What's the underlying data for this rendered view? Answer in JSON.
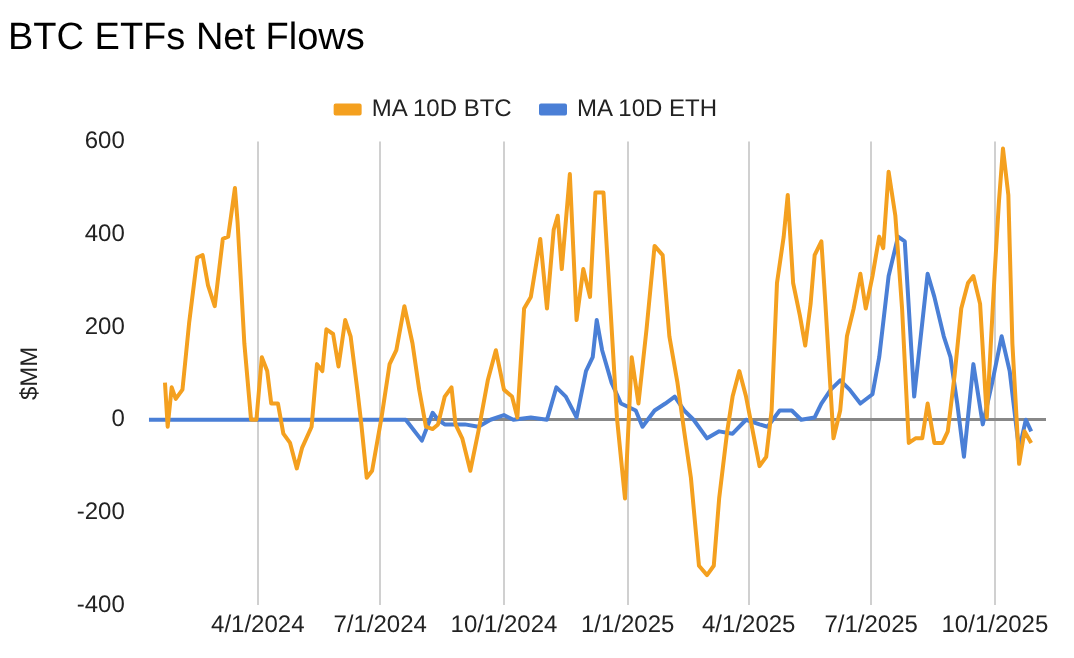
{
  "chart_data": {
    "type": "line",
    "title": "BTC ETFs Net Flows",
    "ylabel": "$MM",
    "legend": "top",
    "grid": "x",
    "marker": "none",
    "line_style": "solid",
    "xlim": [
      "2024-01-11",
      "2025-11-08"
    ],
    "xticks": [
      {
        "value": "2024-04-01",
        "label": "4/1/2024"
      },
      {
        "value": "2024-07-01",
        "label": "7/1/2024"
      },
      {
        "value": "2024-10-01",
        "label": "10/1/2024"
      },
      {
        "value": "2025-01-01",
        "label": "1/1/2025"
      },
      {
        "value": "2025-04-01",
        "label": "4/1/2025"
      },
      {
        "value": "2025-07-01",
        "label": "7/1/2025"
      },
      {
        "value": "2025-10-01",
        "label": "10/1/2025"
      }
    ],
    "ylim": [
      -400,
      600
    ],
    "yticks": [
      -400,
      -200,
      0,
      200,
      400,
      600
    ],
    "series": [
      {
        "name": "MA 10D BTC",
        "color": "#f4a01f",
        "x": [
          "2024-01-23",
          "2024-01-25",
          "2024-01-28",
          "2024-01-31",
          "2024-02-05",
          "2024-02-10",
          "2024-02-16",
          "2024-02-20",
          "2024-02-24",
          "2024-02-29",
          "2024-03-06",
          "2024-03-10",
          "2024-03-15",
          "2024-03-17",
          "2024-03-22",
          "2024-03-27",
          "2024-03-31",
          "2024-04-04",
          "2024-04-08",
          "2024-04-11",
          "2024-04-16",
          "2024-04-20",
          "2024-04-25",
          "2024-04-30",
          "2024-05-04",
          "2024-05-11",
          "2024-05-15",
          "2024-05-19",
          "2024-05-22",
          "2024-05-27",
          "2024-05-31",
          "2024-06-05",
          "2024-06-09",
          "2024-06-14",
          "2024-06-17",
          "2024-06-21",
          "2024-06-25",
          "2024-07-02",
          "2024-07-08",
          "2024-07-13",
          "2024-07-19",
          "2024-07-25",
          "2024-07-30",
          "2024-08-04",
          "2024-08-09",
          "2024-08-13",
          "2024-08-18",
          "2024-08-23",
          "2024-08-26",
          "2024-08-31",
          "2024-09-06",
          "2024-09-12",
          "2024-09-19",
          "2024-09-25",
          "2024-10-01",
          "2024-10-07",
          "2024-10-11",
          "2024-10-16",
          "2024-10-21",
          "2024-10-28",
          "2024-11-02",
          "2024-11-07",
          "2024-11-10",
          "2024-11-13",
          "2024-11-19",
          "2024-11-24",
          "2024-11-29",
          "2024-12-04",
          "2024-12-08",
          "2024-12-14",
          "2024-12-19",
          "2024-12-24",
          "2024-12-30",
          "2025-01-04",
          "2025-01-09",
          "2025-01-15",
          "2025-01-21",
          "2025-01-27",
          "2025-02-01",
          "2025-02-07",
          "2025-02-12",
          "2025-02-17",
          "2025-02-23",
          "2025-03-01",
          "2025-03-06",
          "2025-03-10",
          "2025-03-16",
          "2025-03-20",
          "2025-03-25",
          "2025-03-30",
          "2025-04-03",
          "2025-04-09",
          "2025-04-14",
          "2025-04-18",
          "2025-04-22",
          "2025-04-27",
          "2025-04-30",
          "2025-05-04",
          "2025-05-09",
          "2025-05-13",
          "2025-05-17",
          "2025-05-20",
          "2025-05-25",
          "2025-05-28",
          "2025-06-03",
          "2025-06-08",
          "2025-06-13",
          "2025-06-18",
          "2025-06-23",
          "2025-06-27",
          "2025-07-02",
          "2025-07-07",
          "2025-07-10",
          "2025-07-14",
          "2025-07-19",
          "2025-07-24",
          "2025-07-29",
          "2025-08-03",
          "2025-08-08",
          "2025-08-12",
          "2025-08-17",
          "2025-08-23",
          "2025-08-27",
          "2025-09-01",
          "2025-09-06",
          "2025-09-11",
          "2025-09-15",
          "2025-09-20",
          "2025-09-25",
          "2025-10-01",
          "2025-10-04",
          "2025-10-07",
          "2025-10-11",
          "2025-10-14",
          "2025-10-19",
          "2025-10-23",
          "2025-10-28"
        ],
        "values": [
          80,
          -15,
          70,
          45,
          65,
          210,
          350,
          355,
          290,
          245,
          390,
          395,
          500,
          425,
          165,
          0,
          0,
          135,
          105,
          35,
          35,
          -30,
          -50,
          -105,
          -60,
          -15,
          120,
          105,
          195,
          185,
          115,
          215,
          180,
          65,
          -10,
          -125,
          -110,
          5,
          120,
          150,
          245,
          165,
          65,
          -15,
          -20,
          -10,
          50,
          70,
          -10,
          -40,
          -110,
          -25,
          85,
          150,
          65,
          50,
          5,
          240,
          265,
          390,
          240,
          410,
          440,
          325,
          530,
          215,
          325,
          265,
          490,
          490,
          250,
          5,
          -170,
          135,
          35,
          195,
          375,
          355,
          180,
          80,
          -25,
          -125,
          -315,
          -335,
          -315,
          -170,
          -25,
          50,
          105,
          50,
          -10,
          -100,
          -80,
          20,
          295,
          395,
          485,
          295,
          225,
          160,
          250,
          355,
          385,
          250,
          -40,
          20,
          180,
          240,
          315,
          240,
          310,
          395,
          370,
          535,
          440,
          240,
          -50,
          -40,
          -40,
          35,
          -50,
          -50,
          -25,
          95,
          240,
          295,
          310,
          250,
          5,
          325,
          470,
          585,
          485,
          165,
          -95,
          -25,
          -50
        ]
      },
      {
        "name": "MA 10D ETH",
        "color": "#4a7fd6",
        "x": [
          "2024-01-11",
          "2024-07-20",
          "2024-08-01",
          "2024-08-09",
          "2024-08-13",
          "2024-08-18",
          "2024-09-02",
          "2024-09-12",
          "2024-09-21",
          "2024-10-01",
          "2024-10-08",
          "2024-10-21",
          "2024-11-02",
          "2024-11-09",
          "2024-11-16",
          "2024-11-24",
          "2024-12-01",
          "2024-12-06",
          "2024-12-09",
          "2024-12-13",
          "2024-12-20",
          "2024-12-27",
          "2025-01-07",
          "2025-01-12",
          "2025-01-21",
          "2025-01-29",
          "2025-02-05",
          "2025-02-12",
          "2025-02-19",
          "2025-03-01",
          "2025-03-10",
          "2025-03-20",
          "2025-03-30",
          "2025-04-09",
          "2025-04-15",
          "2025-04-24",
          "2025-05-03",
          "2025-05-10",
          "2025-05-20",
          "2025-05-25",
          "2025-06-01",
          "2025-06-08",
          "2025-06-15",
          "2025-06-23",
          "2025-07-02",
          "2025-07-07",
          "2025-07-14",
          "2025-07-21",
          "2025-07-26",
          "2025-08-02",
          "2025-08-12",
          "2025-08-17",
          "2025-08-24",
          "2025-08-29",
          "2025-09-03",
          "2025-09-08",
          "2025-09-15",
          "2025-09-22",
          "2025-09-29",
          "2025-10-06",
          "2025-10-12",
          "2025-10-19",
          "2025-10-24",
          "2025-10-28"
        ],
        "values": [
          0,
          0,
          -45,
          15,
          0,
          -10,
          -10,
          -15,
          0,
          10,
          0,
          5,
          0,
          70,
          50,
          5,
          105,
          135,
          215,
          150,
          80,
          35,
          20,
          -15,
          20,
          35,
          50,
          20,
          0,
          -40,
          -25,
          -30,
          0,
          -10,
          -15,
          20,
          20,
          0,
          5,
          35,
          65,
          85,
          65,
          35,
          55,
          135,
          310,
          395,
          385,
          50,
          315,
          265,
          180,
          135,
          35,
          -80,
          120,
          -10,
          80,
          180,
          105,
          -65,
          0,
          -25
        ]
      }
    ]
  }
}
